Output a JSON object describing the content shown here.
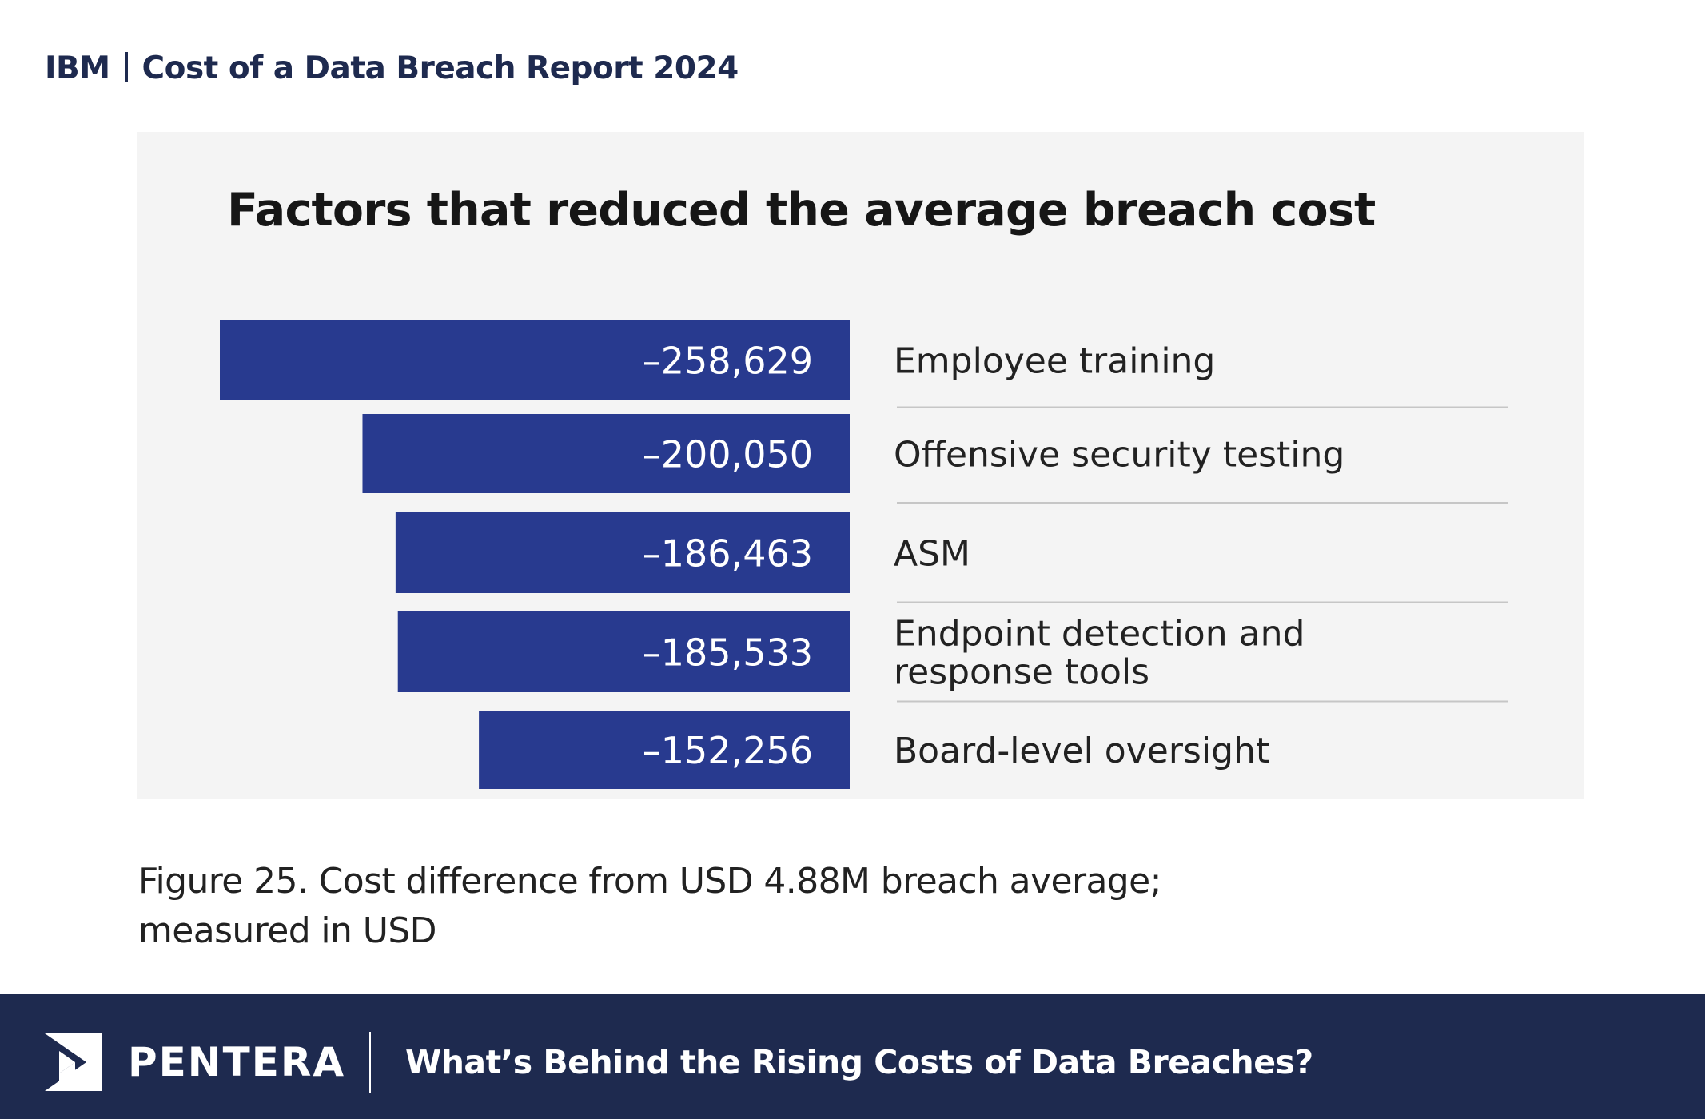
{
  "header": {
    "brand": "IBM",
    "report_title": "Cost of a Data Breach Report 2024"
  },
  "caption": {
    "line1": "Figure 25. Cost difference from USD 4.88M breach average;",
    "line2": "measured in USD"
  },
  "footer": {
    "brand": "PENTERA",
    "tagline": "What’s Behind the Rising Costs of Data Breaches?"
  },
  "colors": {
    "bar": "#283a8f",
    "panel": "#f4f4f4",
    "footer": "#1e2a4f"
  },
  "chart_data": {
    "type": "bar",
    "orientation": "horizontal",
    "title": "Factors that reduced the average breach cost",
    "categories": [
      [
        "Employee training"
      ],
      [
        "Offensive security testing"
      ],
      [
        "ASM"
      ],
      [
        "Endpoint detection and",
        "response tools"
      ],
      [
        "Board-level oversight"
      ]
    ],
    "values": [
      -258629,
      -200050,
      -186463,
      -185533,
      -152256
    ],
    "value_labels": [
      "–258,629",
      "–200,050",
      "–186,463",
      "–185,533",
      "–152,256"
    ],
    "xlim": [
      -258629,
      0
    ],
    "legend": "none",
    "grid": false
  }
}
